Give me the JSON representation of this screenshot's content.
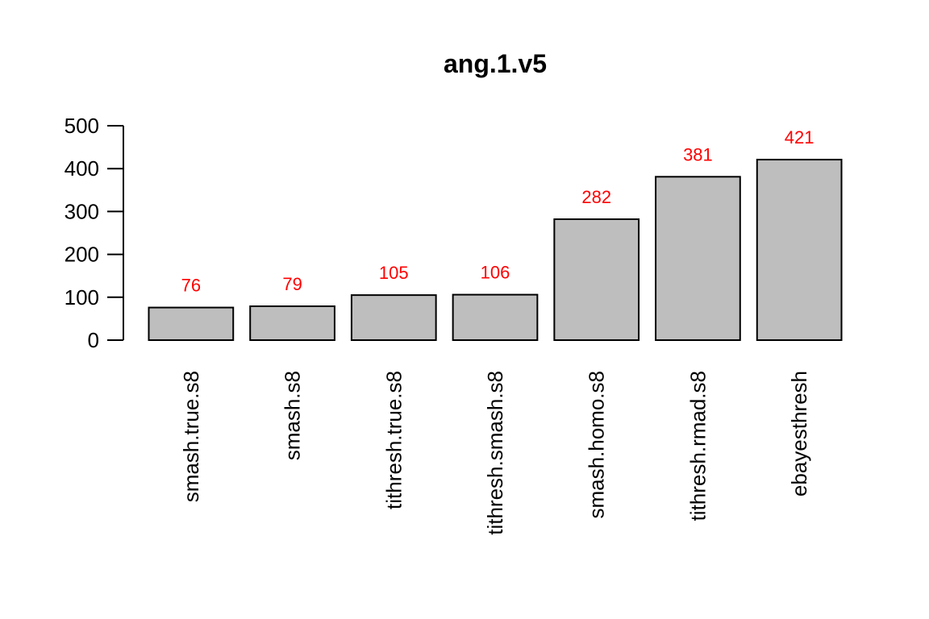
{
  "chart_data": {
    "type": "bar",
    "title": "ang.1.v5",
    "xlabel": "",
    "ylabel": "",
    "categories": [
      "smash.true.s8",
      "smash.s8",
      "tithresh.true.s8",
      "tithresh.smash.s8",
      "smash.homo.s8",
      "tithresh.rmad.s8",
      "ebayesthresh"
    ],
    "values": [
      76,
      79,
      105,
      106,
      282,
      381,
      421
    ],
    "value_labels": [
      "76",
      "79",
      "105",
      "106",
      "282",
      "381",
      "421"
    ],
    "ylim": [
      0,
      500
    ],
    "yticks": [
      0,
      100,
      200,
      300,
      400,
      500
    ],
    "ytick_labels": [
      "0",
      "100",
      "200",
      "300",
      "400",
      "500"
    ],
    "grid": false,
    "legend": "none",
    "colors": {
      "bar_fill": "#bebebe",
      "bar_stroke": "#000000",
      "value_label": "#ff0000",
      "axis": "#000000"
    }
  }
}
